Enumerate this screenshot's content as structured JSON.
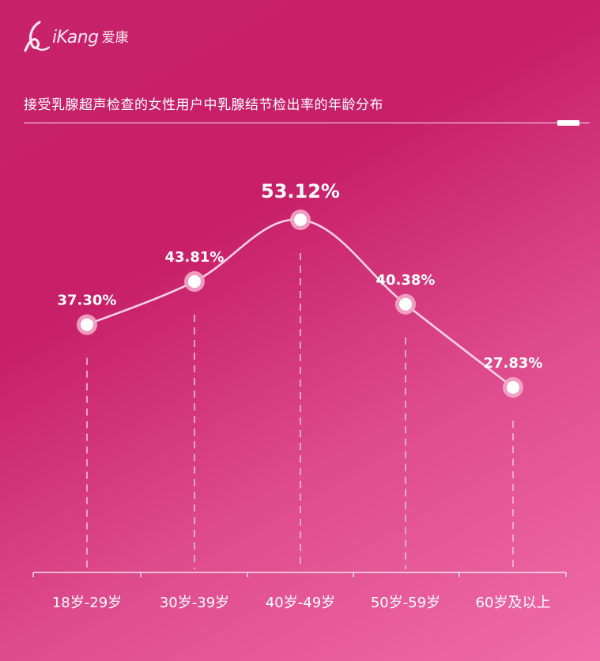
{
  "brand": {
    "name": "iKang",
    "name_cn": "爱康"
  },
  "chart_data": {
    "type": "line",
    "title": "接受乳腺超声检查的女性用户中乳腺结节检出率的年龄分布",
    "categories": [
      "18岁-29岁",
      "30岁-39岁",
      "40岁-49岁",
      "50岁-59岁",
      "60岁及以上"
    ],
    "values": [
      37.3,
      43.81,
      53.12,
      40.38,
      27.83
    ],
    "labels": [
      "37.30%",
      "43.81%",
      "53.12%",
      "40.38%",
      "27.83%"
    ],
    "unit": "%",
    "ylim": [
      0,
      60
    ],
    "grid": false,
    "legend": "none",
    "highlight_index": 2,
    "colors": {
      "line": "#f6d2e3",
      "marker_fill": "#ffffff",
      "marker_ring": "#f3a8c8",
      "drop_line": "#f5b8d3"
    }
  }
}
